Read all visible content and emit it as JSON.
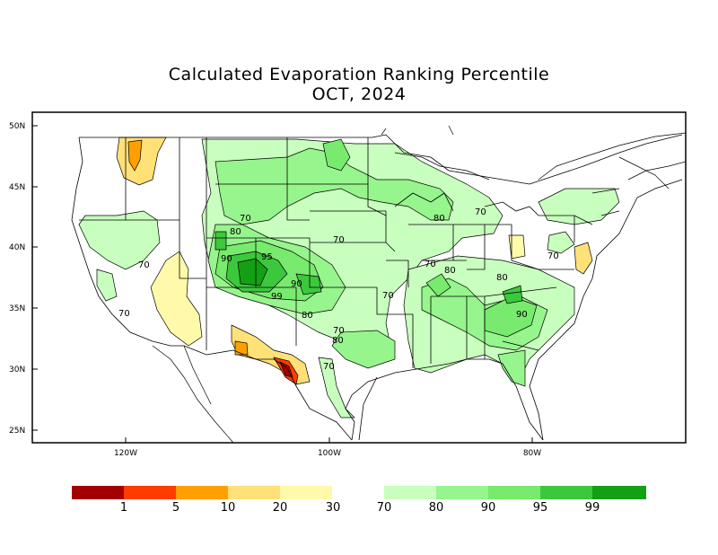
{
  "title": "Calculated Evaporation Ranking Percentile",
  "subtitle": "OCT, 2024",
  "latitude_labels": [
    "50N",
    "45N",
    "40N",
    "35N",
    "30N",
    "25N"
  ],
  "longitude_labels": [
    "120W",
    "100W",
    "80W"
  ],
  "contour_labels": [
    "70",
    "80",
    "90",
    "95",
    "90",
    "99",
    "80",
    "70",
    "80",
    "70",
    "80",
    "70",
    "70",
    "80",
    "70",
    "80",
    "90",
    "70",
    "70",
    "70"
  ],
  "legend": {
    "dry_colors": [
      "#a50000",
      "#ff3c00",
      "#ffa000",
      "#ffe178",
      "#fffaaa"
    ],
    "wet_colors": [
      "#c8ffbe",
      "#96f58c",
      "#78ea6e",
      "#3cc83c",
      "#14a014"
    ],
    "labels": [
      "1",
      "5",
      "10",
      "20",
      "30",
      "70",
      "80",
      "90",
      "95",
      "99"
    ]
  }
}
